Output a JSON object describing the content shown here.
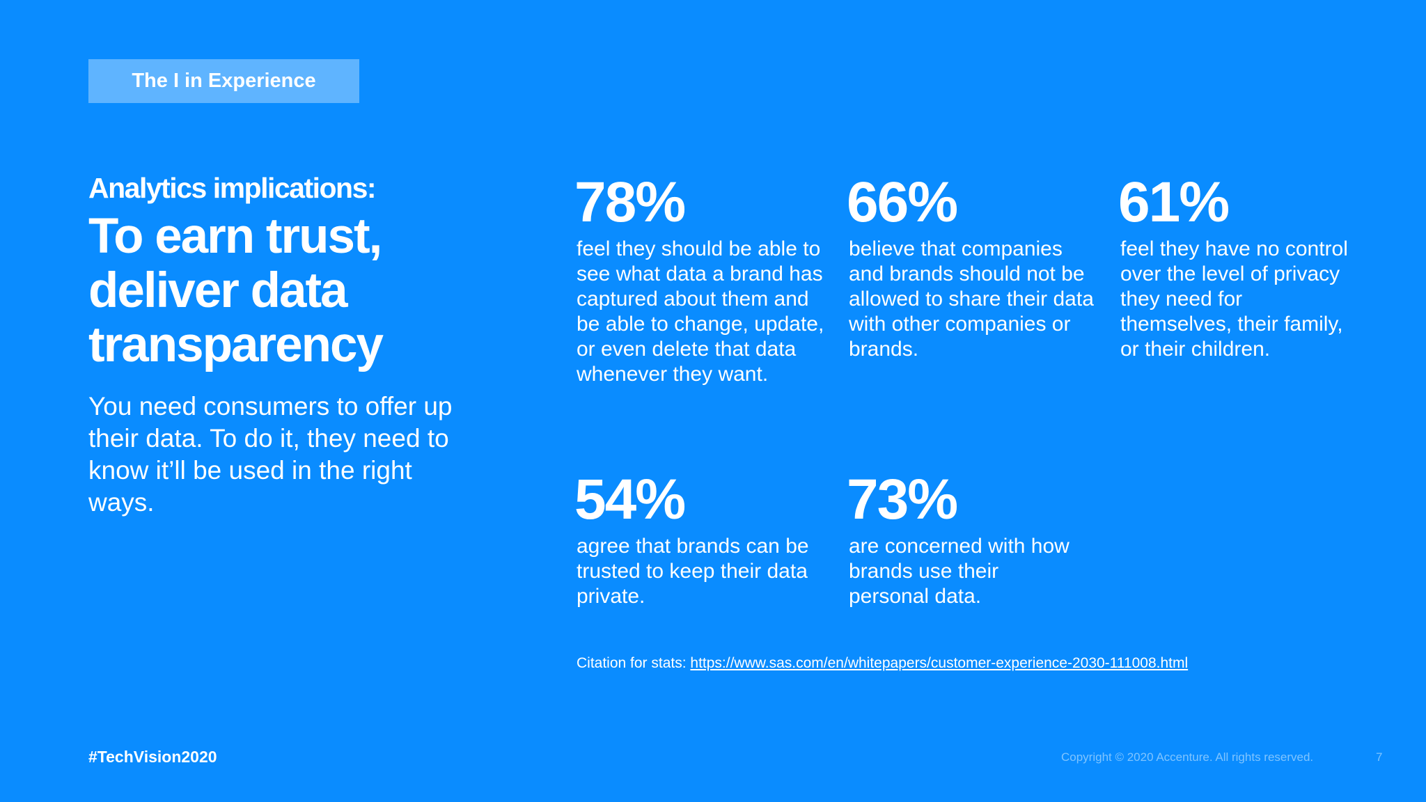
{
  "section_tag": "The I in Experience",
  "left": {
    "kicker": "Analytics implications:",
    "headline": "To earn trust, deliver data transparency",
    "intro": "You need consumers to offer up their data. To do it, they need to know it’ll be used in the right ways."
  },
  "stats": [
    {
      "value": "78%",
      "description": "feel they should be able to see what data a brand has captured about them and be able to change, update, or even delete that data whenever they want."
    },
    {
      "value": "66%",
      "description": "believe that companies and brands should not be allowed to share their data with other companies or brands."
    },
    {
      "value": "61%",
      "description": "feel they have no control over the level of privacy they need for themselves, their family, or their children."
    },
    {
      "value": "54%",
      "description": "agree that brands can be trusted to keep their data private."
    },
    {
      "value": "73%",
      "description": "are concerned with how brands use their personal data."
    }
  ],
  "citation": {
    "label": "Citation for stats: ",
    "link_text": "https://www.sas.com/en/whitepapers/customer-experience-2030-111008.html"
  },
  "footer": {
    "hashtag": "#TechVision2020",
    "copyright": "Copyright © 2020 Accenture. All rights reserved.",
    "page_number": "7"
  },
  "colors": {
    "background": "#0a8cff",
    "tag_background": "#5fb4ff",
    "footer_text": "#7fc4ff"
  }
}
